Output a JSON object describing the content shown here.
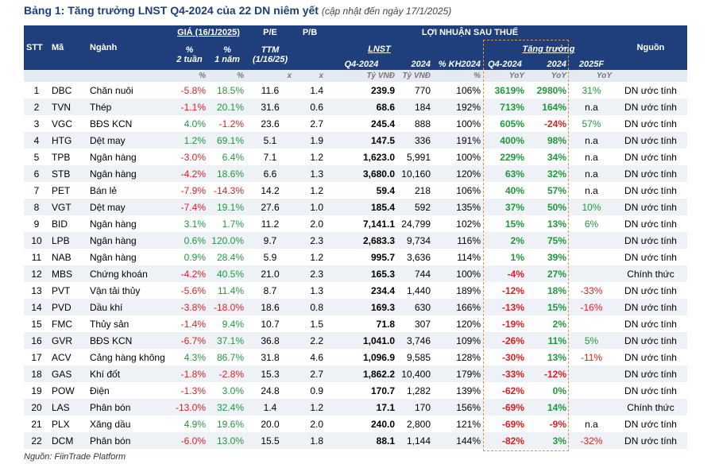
{
  "title": "Bảng 1: Tăng trưởng LNST Q4-2024 của 22 DN niêm yết",
  "subtitle": "(cập nhật đến ngày 17/1/2025)",
  "header": {
    "stt": "STT",
    "ma": "Mã",
    "nganh": "Ngành",
    "gia": "GIÁ (16/1/2025)",
    "pe": "P/E",
    "pb": "P/B",
    "lnst_group": "LỢI NHUẬN SAU THUẾ",
    "nguon": "Nguồn",
    "chg_2w": [
      "%",
      "2 tuần"
    ],
    "chg_1y": [
      "%",
      "1 năm"
    ],
    "ttm": [
      "TTM",
      "(1/16/25)"
    ],
    "lnst": "LNST",
    "growth": "Tăng trưởng",
    "q4_2024": "Q4-2024",
    "y2024": "2024",
    "kh2024": "% KH2024",
    "g_q4_2024": "Q4-2024",
    "g_2024": "2024",
    "g_2025f": "2025F"
  },
  "units": [
    null,
    null,
    null,
    "%",
    "%",
    "x",
    "x",
    "Tỷ VNĐ",
    "Tỷ VNĐ",
    "%",
    "YoY",
    "YoY",
    "YoY",
    null
  ],
  "rows": [
    [
      "1",
      "DBC",
      "Chăn nuôi",
      "-5.8%",
      "18.5%",
      "11.6",
      "1.4",
      "239.9",
      "770",
      "106%",
      "3619%",
      "2980%",
      "31%",
      "DN ước tính"
    ],
    [
      "2",
      "TVN",
      "Thép",
      "-1.1%",
      "20.1%",
      "31.6",
      "0.6",
      "68.6",
      "184",
      "192%",
      "713%",
      "164%",
      "n.a",
      "DN ước tính"
    ],
    [
      "3",
      "VGC",
      "BĐS KCN",
      "4.0%",
      "-1.2%",
      "23.6",
      "2.7",
      "245.4",
      "888",
      "100%",
      "605%",
      "-24%",
      "57%",
      "DN ước tính"
    ],
    [
      "4",
      "HTG",
      "Dệt may",
      "1.2%",
      "69.1%",
      "5.1",
      "1.9",
      "147.5",
      "336",
      "191%",
      "400%",
      "98%",
      "n.a",
      "DN ước tính"
    ],
    [
      "5",
      "TPB",
      "Ngân hàng",
      "-3.0%",
      "6.4%",
      "7.1",
      "1.2",
      "1,623.0",
      "5,991",
      "100%",
      "229%",
      "34%",
      "n.a",
      "DN ước tính"
    ],
    [
      "6",
      "STB",
      "Ngân hàng",
      "-4.2%",
      "18.6%",
      "6.6",
      "1.3",
      "3,680.0",
      "10,160",
      "120%",
      "63%",
      "32%",
      "n.a",
      "DN ước tính"
    ],
    [
      "7",
      "PET",
      "Bán lẻ",
      "-7.9%",
      "-14.3%",
      "14.2",
      "1.2",
      "59.4",
      "218",
      "106%",
      "40%",
      "57%",
      "n.a",
      "DN ước tính"
    ],
    [
      "8",
      "VGT",
      "Dệt may",
      "-7.4%",
      "19.1%",
      "27.6",
      "1.0",
      "185.4",
      "592",
      "135%",
      "37%",
      "50%",
      "10%",
      "DN ước tính"
    ],
    [
      "9",
      "BID",
      "Ngân hàng",
      "3.1%",
      "1.7%",
      "11.2",
      "2.0",
      "7,141.1",
      "24,799",
      "102%",
      "15%",
      "13%",
      "6%",
      "DN ước tính"
    ],
    [
      "10",
      "LPB",
      "Ngân hàng",
      "0.6%",
      "120.0%",
      "9.7",
      "2.3",
      "2,683.3",
      "9,734",
      "116%",
      "2%",
      "75%",
      null,
      "DN ước tính"
    ],
    [
      "11",
      "NAB",
      "Ngân hàng",
      "0.9%",
      "28.4%",
      "5.9",
      "1.2",
      "995.7",
      "3,636",
      "114%",
      "1%",
      "39%",
      null,
      "DN ước tính"
    ],
    [
      "12",
      "MBS",
      "Chứng khoán",
      "-4.2%",
      "40.5%",
      "21.0",
      "2.3",
      "165.3",
      "744",
      "100%",
      "-4%",
      "27%",
      null,
      "Chính thức"
    ],
    [
      "13",
      "PVT",
      "Vận tải thủy",
      "-5.6%",
      "11.4%",
      "8.7",
      "1.3",
      "234.4",
      "1,440",
      "189%",
      "-12%",
      "18%",
      "-33%",
      "DN ước tính"
    ],
    [
      "14",
      "PVD",
      "Dầu khí",
      "-3.8%",
      "-18.0%",
      "18.6",
      "0.8",
      "169.3",
      "630",
      "166%",
      "-13%",
      "15%",
      "-16%",
      "DN ước tính"
    ],
    [
      "15",
      "FMC",
      "Thủy sản",
      "-1.4%",
      "9.4%",
      "10.7",
      "1.5",
      "71.8",
      "307",
      "120%",
      "-19%",
      "2%",
      null,
      "DN ước tính"
    ],
    [
      "16",
      "GVR",
      "BĐS KCN",
      "-6.7%",
      "37.1%",
      "36.8",
      "2.2",
      "1,041.0",
      "3,746",
      "109%",
      "-26%",
      "11%",
      "5%",
      "DN ước tính"
    ],
    [
      "17",
      "ACV",
      "Cảng hàng không",
      "4.3%",
      "86.7%",
      "31.8",
      "4.6",
      "1,096.9",
      "9,585",
      "128%",
      "-30%",
      "13%",
      "-11%",
      "DN ước tính"
    ],
    [
      "18",
      "GAS",
      "Khí đốt",
      "-1.8%",
      "-2.8%",
      "15.3",
      "2.7",
      "1,862.2",
      "10,400",
      "179%",
      "-33%",
      "-12%",
      null,
      "DN ước tính"
    ],
    [
      "19",
      "POW",
      "Điện",
      "-1.3%",
      "3.0%",
      "24.8",
      "0.9",
      "170.7",
      "1,282",
      "139%",
      "-62%",
      "0%",
      null,
      "DN ước tính"
    ],
    [
      "20",
      "LAS",
      "Phân bón",
      "-13.0%",
      "32.4%",
      "1.4",
      "1.2",
      "17.1",
      "170",
      "156%",
      "-69%",
      "14%",
      null,
      "Chính thức"
    ],
    [
      "21",
      "PLX",
      "Xăng dầu",
      "4.9%",
      "19.6%",
      "20.0",
      "2.0",
      "240.0",
      "2,800",
      "121%",
      "-69%",
      "-9%",
      "n.a",
      "DN ước tính"
    ],
    [
      "22",
      "DCM",
      "Phân bón",
      "-6.0%",
      "13.0%",
      "15.5",
      "1.8",
      "88.1",
      "1,144",
      "144%",
      "-82%",
      "3%",
      "-32%",
      "DN ước tính"
    ]
  ],
  "source_note": "Nguồn: FiinTrade Platform"
}
